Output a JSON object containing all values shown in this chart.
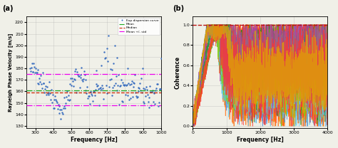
{
  "panel_a": {
    "title": "(a)",
    "xlabel": "Frequency [Hz]",
    "ylabel": "Rayleigh Phase Velocity [m/s]",
    "xlim": [
      250,
      1000
    ],
    "ylim": [
      128,
      225
    ],
    "yticks": [
      130,
      140,
      150,
      160,
      170,
      180,
      190,
      200,
      210,
      220
    ],
    "xticks": [
      300,
      400,
      500,
      600,
      700,
      800,
      900,
      1000
    ],
    "mean_val": 161,
    "median_val": 159,
    "std_upper": 175,
    "std_lower": 148,
    "dot_color": "#3A6EBF",
    "mean_color": "#22AA22",
    "median_color": "#CC2200",
    "std_color": "#EE00EE",
    "bg_color": "#F0F0E8",
    "legend_labels": [
      "Exp dispersion curve",
      "Mean",
      "Median",
      "Mean +/- std"
    ]
  },
  "panel_b": {
    "title": "(b)",
    "xlabel": "Frequency [Hz]",
    "ylabel": "Coherence",
    "xlim": [
      0,
      4000
    ],
    "ylim": [
      -0.02,
      1.08
    ],
    "yticks": [
      0.0,
      0.2,
      0.4,
      0.6,
      0.8,
      1.0
    ],
    "xticks": [
      0,
      1000,
      2000,
      3000,
      4000
    ],
    "hline_val": 1.0,
    "hline_color": "#BB1111",
    "bg_color": "#F0F0E8",
    "line_colors": [
      "#FF8C00",
      "#FF6600",
      "#FF4500",
      "#4488DD",
      "#55CCEE",
      "#228B22",
      "#88CC00",
      "#AA44AA",
      "#FF3333",
      "#DDAA00"
    ]
  }
}
